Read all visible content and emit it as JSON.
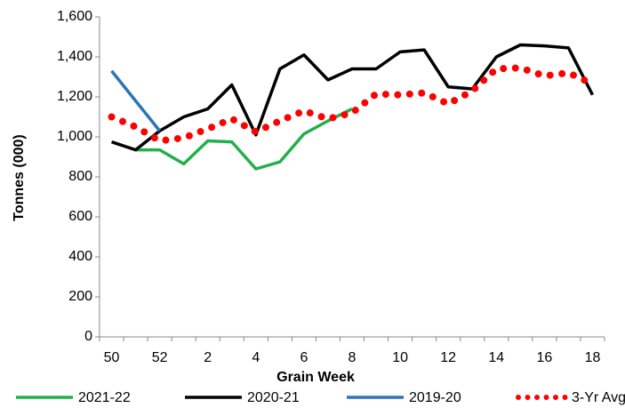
{
  "chart_data": {
    "type": "line",
    "y_label": "Tonnes (000)",
    "x_label": "Grain Week",
    "categories": [
      50,
      null,
      52,
      null,
      2,
      null,
      4,
      null,
      6,
      null,
      8,
      null,
      10,
      null,
      12,
      null,
      14,
      null,
      16,
      null,
      18
    ],
    "ylim": [
      0,
      1600
    ],
    "yticks": [
      0,
      200,
      400,
      600,
      800,
      {
        "value": 1000,
        "label": "1,000"
      },
      {
        "value": 1200,
        "label": "1,200"
      },
      {
        "value": 1400,
        "label": "1,400"
      },
      {
        "value": 1600,
        "label": "1,600"
      }
    ],
    "series": [
      {
        "name": "2021-22",
        "color": "#22b04b",
        "style": "solid",
        "values": [
          null,
          935,
          935,
          865,
          980,
          975,
          840,
          875,
          1015,
          1080,
          1140,
          null,
          null,
          null,
          null,
          null,
          null,
          null,
          null,
          null,
          null
        ]
      },
      {
        "name": "2020-21",
        "color": "#000000",
        "style": "solid",
        "values": [
          975,
          935,
          1030,
          1100,
          1140,
          1260,
          1010,
          1340,
          1410,
          1285,
          1340,
          1340,
          1425,
          1435,
          1250,
          1240,
          1400,
          1460,
          1455,
          1445,
          1210
        ]
      },
      {
        "name": "2019-20",
        "color": "#2e75b6",
        "style": "solid",
        "values": [
          1330,
          1180,
          1030,
          null,
          null,
          null,
          null,
          null,
          null,
          null,
          null,
          null,
          null,
          null,
          null,
          null,
          null,
          null,
          null,
          null,
          null
        ]
      },
      {
        "name": "3-Yr Avg.",
        "color": "#ff0000",
        "style": "dotted",
        "values": [
          1100,
          1050,
          980,
          995,
          1040,
          1090,
          1025,
          1080,
          1130,
          1090,
          1120,
          1215,
          1210,
          1220,
          1165,
          1230,
          1340,
          1345,
          1305,
          1320,
          1265
        ]
      }
    ]
  }
}
